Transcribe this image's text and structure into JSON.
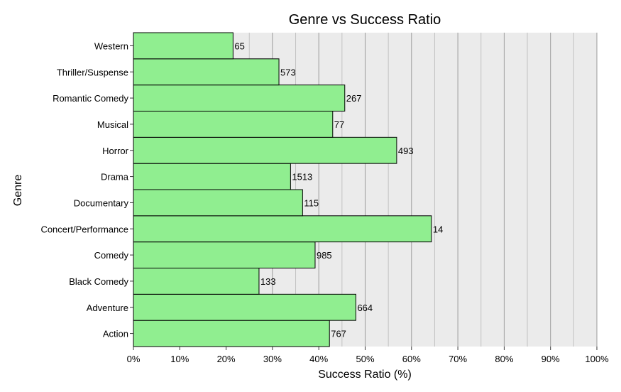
{
  "chart_data": {
    "type": "bar",
    "orientation": "horizontal",
    "title": "Genre vs Success Ratio",
    "xlabel": "Success Ratio (%)",
    "ylabel": "Genre",
    "xlim": [
      0,
      100
    ],
    "x_ticks": [
      0,
      10,
      20,
      30,
      40,
      50,
      60,
      70,
      80,
      90,
      100
    ],
    "x_tick_labels": [
      "0%",
      "10%",
      "20%",
      "30%",
      "40%",
      "50%",
      "60%",
      "70%",
      "80%",
      "90%",
      "100%"
    ],
    "categories": [
      "Action",
      "Adventure",
      "Black Comedy",
      "Comedy",
      "Concert/Performance",
      "Documentary",
      "Drama",
      "Horror",
      "Musical",
      "Romantic Comedy",
      "Thriller/Suspense",
      "Western"
    ],
    "values": [
      42.3,
      48.0,
      27.1,
      39.2,
      64.3,
      36.5,
      33.9,
      56.8,
      43.0,
      45.6,
      31.4,
      21.5
    ],
    "data_labels": [
      "767",
      "664",
      "133",
      "985",
      "14",
      "115",
      "1513",
      "493",
      "77",
      "267",
      "573",
      "65"
    ],
    "grid": true,
    "bar_color": "#90EE90",
    "bar_edge_color": "#000000",
    "panel_color": "#EBEBEB",
    "grid_color": "#9A9A9A"
  }
}
